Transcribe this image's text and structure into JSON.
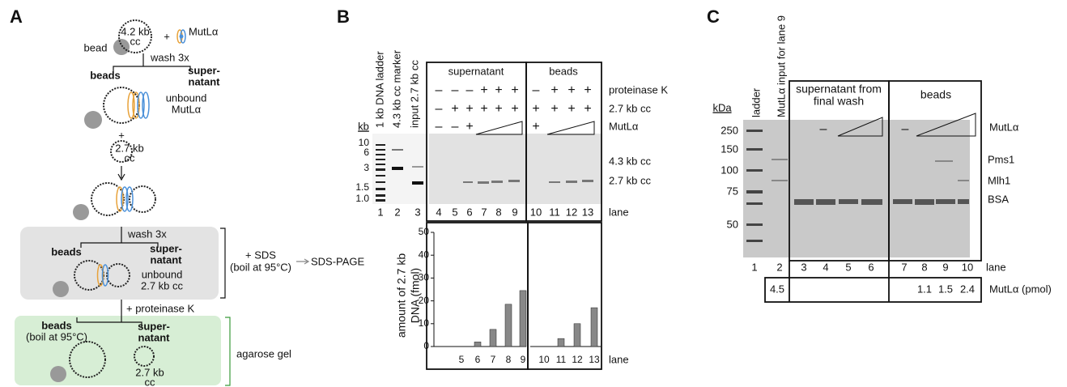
{
  "panel_a": {
    "label": "A",
    "plasmid_1": [
      "4.2 kb",
      "cc"
    ],
    "bead": "bead",
    "plus_1": "+",
    "protein": "MutLα",
    "wash_1": "wash 3x",
    "beads_1": "beads",
    "supernatant_1": [
      "super-",
      "natant"
    ],
    "unbound_1": [
      "unbound",
      "MutLα"
    ],
    "plus_2": "+",
    "plasmid_2": [
      "2.7 kb",
      "cc"
    ],
    "wash_2": "wash 3x",
    "beads_2": "beads",
    "supernatant_2": [
      "super-",
      "natant"
    ],
    "unbound_2": [
      "unbound",
      "2.7 kb cc"
    ],
    "sds": [
      "+ SDS",
      "(boil at 95°C)"
    ],
    "sds_page": "SDS-PAGE",
    "proteinase": "+ proteinase K",
    "beads_3": [
      "beads",
      "(boil at 95°C)"
    ],
    "supernatant_3": [
      "super-",
      "natant"
    ],
    "plasmid_3": [
      "2.7 kb",
      "cc"
    ],
    "agarose": "agarose gel"
  },
  "panel_b": {
    "label": "B",
    "lane_headers": [
      "1 kb DNA ladder",
      "4.3 kb cc marker",
      "input 2.7 kb cc"
    ],
    "groups": [
      "supernatant",
      "beads"
    ],
    "row_labels": [
      "proteinase K",
      "2.7 kb cc",
      "MutLα"
    ],
    "proteinase_k": [
      "–",
      "–",
      "–",
      "+",
      "+",
      "+",
      "–",
      "+",
      "+",
      "+"
    ],
    "cc": [
      "–",
      "+",
      "+",
      "+",
      "+",
      "+",
      "+",
      "+",
      "+",
      "+"
    ],
    "mutl": [
      "–",
      "–",
      "+",
      "+"
    ],
    "kb_unit": "kb",
    "kb_ticks": [
      "10",
      "6",
      "3",
      "1.5",
      "1.0"
    ],
    "bands": [
      "4.3 kb cc",
      "2.7 kb cc"
    ],
    "lanes": [
      1,
      2,
      3,
      4,
      5,
      6,
      7,
      8,
      9,
      10,
      11,
      12,
      13
    ],
    "lane_label": "lane"
  },
  "panel_c": {
    "label": "C",
    "lane_headers": [
      "ladder",
      "MutLα input for lane 9"
    ],
    "groups": [
      [
        "supernatant from",
        "final wash"
      ],
      "beads"
    ],
    "minus": [
      "–",
      "–"
    ],
    "row_label": "MutLα",
    "kda_unit": "kDa",
    "kda_ticks": [
      250,
      150,
      100,
      75,
      50
    ],
    "bands": [
      "Pms1",
      "Mlh1",
      "BSA"
    ],
    "lanes": [
      1,
      2,
      3,
      4,
      5,
      6,
      7,
      8,
      9,
      10
    ],
    "lane_label": "lane",
    "amounts": [
      4.5,
      1.1,
      1.5,
      2.4
    ],
    "amount_label": "MutLα (pmol)"
  },
  "chart_data": {
    "type": "bar",
    "y_label": [
      "amount of 2.7 kb",
      "DNA (fmol)"
    ],
    "categories": [
      "5",
      "6",
      "7",
      "8",
      "9",
      "10",
      "11",
      "12",
      "13"
    ],
    "values": [
      0,
      2,
      7.5,
      18.5,
      24.5,
      0,
      3.5,
      10,
      17
    ],
    "color": "#888888",
    "ylim": [
      0,
      50
    ],
    "yticks": [
      0,
      10,
      20,
      30,
      40,
      50
    ],
    "x_label": "lane"
  }
}
